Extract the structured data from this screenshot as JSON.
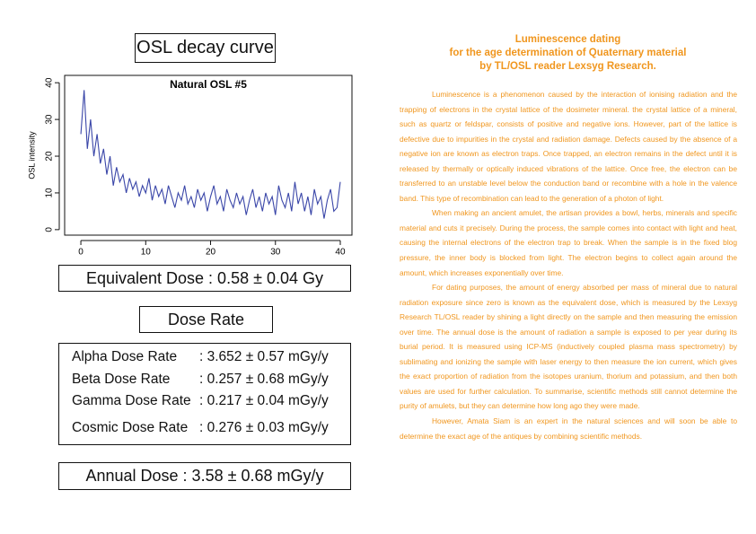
{
  "osl_title": "OSL decay curve",
  "chart_data": {
    "type": "line",
    "title": "Natural OSL #5",
    "ylabel": "OSL intensity",
    "color": "#3a46a8",
    "x": [
      0,
      0.5,
      1,
      1.5,
      2,
      2.5,
      3,
      3.5,
      4,
      4.5,
      5,
      5.5,
      6,
      6.5,
      7,
      7.5,
      8,
      8.5,
      9,
      9.5,
      10,
      10.5,
      11,
      11.5,
      12,
      12.5,
      13,
      13.5,
      14,
      14.5,
      15,
      15.5,
      16,
      16.5,
      17,
      17.5,
      18,
      18.5,
      19,
      19.5,
      20,
      20.5,
      21,
      21.5,
      22,
      22.5,
      23,
      23.5,
      24,
      24.5,
      25,
      25.5,
      26,
      26.5,
      27,
      27.5,
      28,
      28.5,
      29,
      29.5,
      30,
      30.5,
      31,
      31.5,
      32,
      32.5,
      33,
      33.5,
      34,
      34.5,
      35,
      35.5,
      36,
      36.5,
      37,
      37.5,
      38,
      38.5,
      39,
      39.5,
      40
    ],
    "values": [
      26,
      38,
      22,
      30,
      20,
      26,
      18,
      22,
      15,
      20,
      12,
      17,
      13,
      15,
      10,
      14,
      11,
      13,
      9,
      12,
      10,
      14,
      8,
      12,
      9,
      11,
      7,
      12,
      9,
      6,
      10,
      8,
      12,
      7,
      9,
      6,
      11,
      8,
      10,
      5,
      9,
      12,
      7,
      9,
      5,
      11,
      8,
      6,
      10,
      7,
      9,
      4,
      8,
      11,
      6,
      9,
      5,
      10,
      7,
      9,
      4,
      12,
      8,
      6,
      10,
      5,
      13,
      7,
      10,
      5,
      9,
      4,
      11,
      7,
      9,
      3,
      8,
      11,
      5,
      6,
      13
    ],
    "xlim": [
      -2.5,
      41.8
    ],
    "ylim": [
      -1.5,
      42
    ],
    "xticks": [
      0,
      10,
      20,
      30,
      40
    ],
    "yticks": [
      0,
      10,
      20,
      30,
      40
    ]
  },
  "equivalent_dose": "Equivalent Dose : 0.58 ± 0.04 Gy",
  "dose_rate_title": "Dose Rate",
  "dose_rates": [
    {
      "label": "Alpha Dose Rate",
      "value": ": 3.652 ± 0.57 mGy/y"
    },
    {
      "label": "Beta Dose Rate",
      "value": ": 0.257 ± 0.68 mGy/y"
    },
    {
      "label": "Gamma Dose Rate",
      "value": ": 0.217 ± 0.04 mGy/y"
    },
    {
      "label": "Cosmic Dose Rate",
      "value": ": 0.276 ± 0.03 mGy/y"
    }
  ],
  "annual_dose": "Annual Dose : 3.58 ± 0.68 mGy/y",
  "article": {
    "title": [
      "Luminescence dating",
      "for the age determination of Quaternary material",
      "by TL/OSL reader Lexsyg Research."
    ],
    "paragraphs": [
      "Luminescence is a phenomenon caused by the interaction of ionising radiation and the trapping of electrons in the crystal lattice of the dosimeter mineral. the crystal lattice of a mineral, such as quartz or feldspar, consists of positive and negative ions. However, part of the lattice is defective due to impurities in the crystal and radiation damage. Defects caused by the absence of a negative ion are known as electron traps. Once trapped, an electron remains in the defect until it is released by thermally or optically induced vibrations of the lattice. Once free, the electron can be transferred to an unstable level below the conduction band or recombine with a hole in the valence band. This type of recombination can lead to the generation of a photon of light.",
      "When making an ancient amulet, the artisan provides a bowl, herbs, minerals and specific material and cuts it precisely. During the process, the sample comes into contact with light and heat, causing the internal electrons of the electron trap to break. When the sample is in the fixed blog pressure, the inner body is blocked from light. The electron begins to collect again around the amount, which increases exponentially over time.",
      "For dating purposes, the amount of energy absorbed per mass of mineral due to natural radiation exposure since zero is known as the equivalent dose, which is measured by the Lexsyg Research TL/OSL reader by shining a light directly on the sample and then measuring the emission over time. The annual dose is the amount of radiation a sample is exposed to per year during its burial period. It is measured using ICP-MS (inductively coupled plasma mass spectrometry) by sublimating and ionizing the sample with laser energy to then measure the ion current, which gives the exact proportion of radiation from the isotopes uranium, thorium and potassium, and then both values are used for further calculation. To summarise, scientific methods still cannot determine the purity of amulets, but they can determine how long ago they were made.",
      "However, Amata Siam is an expert in the natural sciences and will soon be able to determine the exact age of the antiques by combining scientific methods."
    ]
  }
}
